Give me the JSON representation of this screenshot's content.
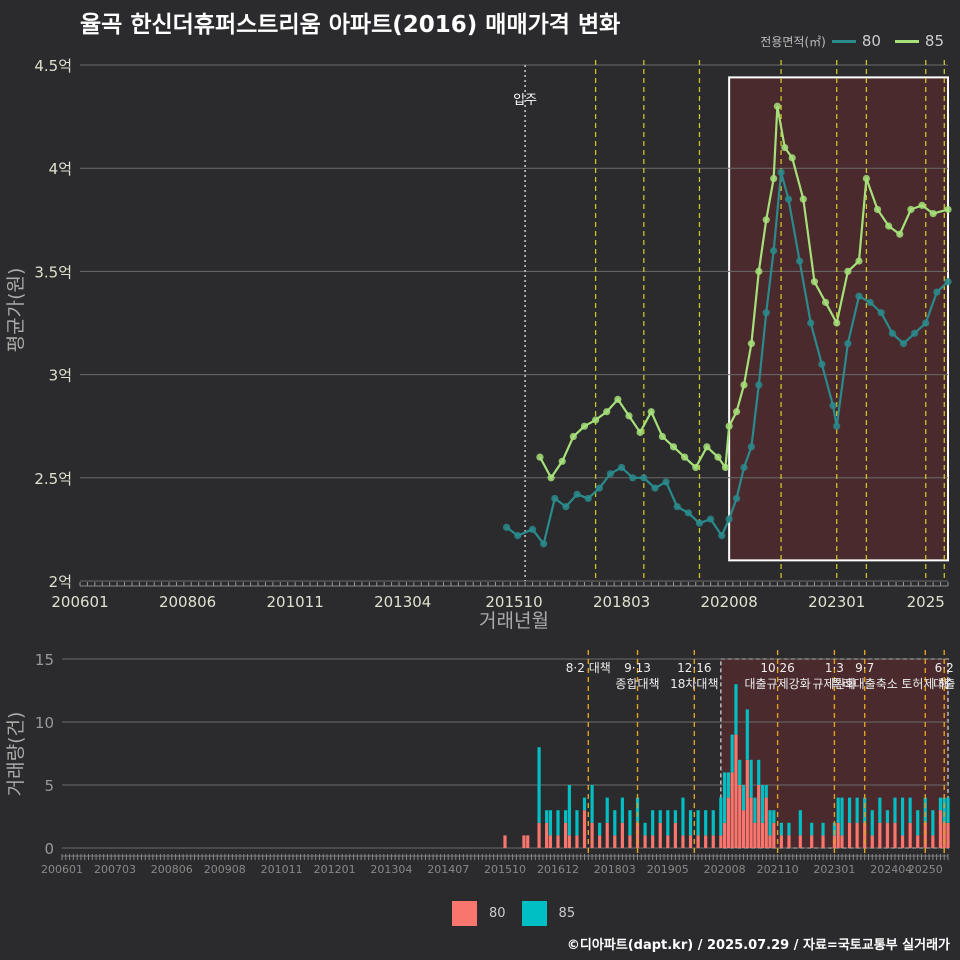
{
  "title": "율곡 한신더휴퍼스트리움 아파트(2016) 매매가격 변화",
  "legend": {
    "title": "전용면적(㎡)",
    "items": [
      {
        "name": "80",
        "color": "#2a8a8c"
      },
      {
        "name": "85",
        "color": "#a6e07a"
      }
    ]
  },
  "bottom_legend": [
    {
      "name": "80",
      "color": "#f8766d"
    },
    {
      "name": "85",
      "color": "#00bfc4"
    }
  ],
  "footer": "©디아파트(dapt.kr) / 2025.07.29 / 자료=국토교통부 실거래가",
  "chart_data": [
    {
      "type": "line",
      "xlabel": "거래년월",
      "ylabel": "평균가(원)",
      "xlim": [
        "2006-01",
        "2025-07"
      ],
      "ylim": [
        2.0,
        4.5
      ],
      "x_ticks": [
        "200601",
        "200806",
        "201011",
        "201304",
        "201510",
        "201803",
        "202008",
        "202301",
        "2025"
      ],
      "y_ticks": [
        "2억",
        "2.5억",
        "3억",
        "3.5억",
        "4억",
        "4.5억"
      ],
      "y_tick_values": [
        2.0,
        2.5,
        3.0,
        3.5,
        4.0,
        4.5
      ],
      "unit": "억",
      "move_in": {
        "label": "입주",
        "x": "2016-01"
      },
      "policy_lines": [
        "2017-08",
        "2018-09",
        "2019-12",
        "2021-10",
        "2023-01",
        "2023-09",
        "2025-01",
        "2025-06"
      ],
      "highlight": {
        "from": "2020-08",
        "to": "2025-07",
        "ymin": 2.1,
        "ymax": 4.44
      },
      "series": [
        {
          "name": "80",
          "x": [
            "2015-08",
            "2015-11",
            "2016-03",
            "2016-06",
            "2016-09",
            "2016-12",
            "2017-03",
            "2017-06",
            "2017-09",
            "2017-12",
            "2018-03",
            "2018-06",
            "2018-09",
            "2018-12",
            "2019-03",
            "2019-06",
            "2019-09",
            "2019-12",
            "2020-03",
            "2020-06",
            "2020-08",
            "2020-10",
            "2020-12",
            "2021-02",
            "2021-04",
            "2021-06",
            "2021-08",
            "2021-10",
            "2021-12",
            "2022-03",
            "2022-06",
            "2022-09",
            "2022-12",
            "2023-01",
            "2023-04",
            "2023-07",
            "2023-10",
            "2024-01",
            "2024-04",
            "2024-07",
            "2024-10",
            "2025-01",
            "2025-04",
            "2025-07"
          ],
          "y": [
            2.26,
            2.22,
            2.25,
            2.18,
            2.4,
            2.36,
            2.42,
            2.4,
            2.45,
            2.52,
            2.55,
            2.5,
            2.5,
            2.45,
            2.48,
            2.36,
            2.33,
            2.28,
            2.3,
            2.22,
            2.3,
            2.4,
            2.55,
            2.65,
            2.95,
            3.3,
            3.6,
            3.98,
            3.85,
            3.55,
            3.25,
            3.05,
            2.85,
            2.75,
            3.15,
            3.38,
            3.35,
            3.3,
            3.2,
            3.15,
            3.2,
            3.25,
            3.4,
            3.45
          ]
        },
        {
          "name": "85",
          "x": [
            "2016-05",
            "2016-08",
            "2016-11",
            "2017-02",
            "2017-05",
            "2017-08",
            "2017-11",
            "2018-02",
            "2018-05",
            "2018-08",
            "2018-11",
            "2019-02",
            "2019-05",
            "2019-08",
            "2019-11",
            "2020-02",
            "2020-05",
            "2020-07",
            "2020-08",
            "2020-10",
            "2020-12",
            "2021-02",
            "2021-04",
            "2021-06",
            "2021-08",
            "2021-09",
            "2021-11",
            "2022-01",
            "2022-04",
            "2022-07",
            "2022-10",
            "2023-01",
            "2023-04",
            "2023-07",
            "2023-09",
            "2023-12",
            "2024-03",
            "2024-06",
            "2024-09",
            "2024-12",
            "2025-03",
            "2025-07"
          ],
          "y": [
            2.6,
            2.5,
            2.58,
            2.7,
            2.75,
            2.78,
            2.82,
            2.88,
            2.8,
            2.72,
            2.82,
            2.7,
            2.65,
            2.6,
            2.55,
            2.65,
            2.6,
            2.55,
            2.75,
            2.82,
            2.95,
            3.15,
            3.5,
            3.75,
            3.95,
            4.3,
            4.1,
            4.05,
            3.85,
            3.45,
            3.35,
            3.25,
            3.5,
            3.55,
            3.95,
            3.8,
            3.72,
            3.68,
            3.8,
            3.82,
            3.78,
            3.8
          ]
        }
      ]
    },
    {
      "type": "bar",
      "xlabel": "",
      "ylabel": "거래량(건)",
      "ylim": [
        0,
        15
      ],
      "y_ticks": [
        "0",
        "5",
        "10",
        "15"
      ],
      "y_tick_values": [
        0,
        5,
        10,
        15
      ],
      "x_ticks": [
        "200601",
        "200703",
        "200806",
        "200908",
        "201011",
        "201201",
        "201304",
        "201407",
        "201510",
        "201612",
        "201803",
        "201905",
        "202008",
        "202110",
        "202301",
        "202404",
        "20250"
      ],
      "stacked": true,
      "series": [
        {
          "name": "80",
          "color": "#f8766d"
        },
        {
          "name": "85",
          "color": "#00bfc4"
        }
      ],
      "data": [
        {
          "x": "2015-10",
          "a": 1,
          "b": 0
        },
        {
          "x": "2016-03",
          "a": 1,
          "b": 0
        },
        {
          "x": "2016-04",
          "a": 1,
          "b": 0
        },
        {
          "x": "2016-07",
          "a": 2,
          "b": 6
        },
        {
          "x": "2016-09",
          "a": 2,
          "b": 1
        },
        {
          "x": "2016-10",
          "a": 1,
          "b": 2
        },
        {
          "x": "2016-12",
          "a": 1,
          "b": 2
        },
        {
          "x": "2017-02",
          "a": 2,
          "b": 1
        },
        {
          "x": "2017-03",
          "a": 1,
          "b": 4
        },
        {
          "x": "2017-05",
          "a": 1,
          "b": 2
        },
        {
          "x": "2017-07",
          "a": 3,
          "b": 1
        },
        {
          "x": "2017-09",
          "a": 2,
          "b": 3
        },
        {
          "x": "2017-11",
          "a": 1,
          "b": 1
        },
        {
          "x": "2018-01",
          "a": 2,
          "b": 2
        },
        {
          "x": "2018-03",
          "a": 1,
          "b": 2
        },
        {
          "x": "2018-05",
          "a": 2,
          "b": 2
        },
        {
          "x": "2018-07",
          "a": 1,
          "b": 2
        },
        {
          "x": "2018-09",
          "a": 2,
          "b": 2
        },
        {
          "x": "2018-11",
          "a": 1,
          "b": 1
        },
        {
          "x": "2019-01",
          "a": 1,
          "b": 2
        },
        {
          "x": "2019-03",
          "a": 2,
          "b": 1
        },
        {
          "x": "2019-05",
          "a": 1,
          "b": 2
        },
        {
          "x": "2019-07",
          "a": 2,
          "b": 1
        },
        {
          "x": "2019-09",
          "a": 1,
          "b": 3
        },
        {
          "x": "2019-11",
          "a": 1,
          "b": 2
        },
        {
          "x": "2020-01",
          "a": 1,
          "b": 2
        },
        {
          "x": "2020-03",
          "a": 1,
          "b": 2
        },
        {
          "x": "2020-05",
          "a": 1,
          "b": 2
        },
        {
          "x": "2020-07",
          "a": 1,
          "b": 3
        },
        {
          "x": "2020-08",
          "a": 2,
          "b": 4
        },
        {
          "x": "2020-09",
          "a": 4,
          "b": 2
        },
        {
          "x": "2020-10",
          "a": 6,
          "b": 3
        },
        {
          "x": "2020-11",
          "a": 9,
          "b": 4
        },
        {
          "x": "2020-12",
          "a": 5,
          "b": 2
        },
        {
          "x": "2021-01",
          "a": 3,
          "b": 2
        },
        {
          "x": "2021-02",
          "a": 7,
          "b": 4
        },
        {
          "x": "2021-03",
          "a": 4,
          "b": 3
        },
        {
          "x": "2021-04",
          "a": 2,
          "b": 2
        },
        {
          "x": "2021-05",
          "a": 5,
          "b": 2
        },
        {
          "x": "2021-06",
          "a": 2,
          "b": 3
        },
        {
          "x": "2021-07",
          "a": 4,
          "b": 1
        },
        {
          "x": "2021-08",
          "a": 1,
          "b": 2
        },
        {
          "x": "2021-09",
          "a": 2,
          "b": 1
        },
        {
          "x": "2021-11",
          "a": 1,
          "b": 1
        },
        {
          "x": "2022-01",
          "a": 1,
          "b": 1
        },
        {
          "x": "2022-04",
          "a": 1,
          "b": 2
        },
        {
          "x": "2022-07",
          "a": 1,
          "b": 1
        },
        {
          "x": "2022-10",
          "a": 1,
          "b": 1
        },
        {
          "x": "2023-01",
          "a": 1,
          "b": 1
        },
        {
          "x": "2023-02",
          "a": 2,
          "b": 2
        },
        {
          "x": "2023-03",
          "a": 1,
          "b": 3
        },
        {
          "x": "2023-05",
          "a": 2,
          "b": 2
        },
        {
          "x": "2023-07",
          "a": 2,
          "b": 2
        },
        {
          "x": "2023-09",
          "a": 2,
          "b": 2
        },
        {
          "x": "2023-11",
          "a": 1,
          "b": 2
        },
        {
          "x": "2024-01",
          "a": 2,
          "b": 2
        },
        {
          "x": "2024-03",
          "a": 2,
          "b": 1
        },
        {
          "x": "2024-05",
          "a": 2,
          "b": 2
        },
        {
          "x": "2024-07",
          "a": 1,
          "b": 3
        },
        {
          "x": "2024-09",
          "a": 2,
          "b": 2
        },
        {
          "x": "2024-11",
          "a": 1,
          "b": 2
        },
        {
          "x": "2025-01",
          "a": 2,
          "b": 2
        },
        {
          "x": "2025-03",
          "a": 1,
          "b": 2
        },
        {
          "x": "2025-05",
          "a": 3,
          "b": 1
        },
        {
          "x": "2025-06",
          "a": 2,
          "b": 2
        },
        {
          "x": "2025-07",
          "a": 2,
          "b": 2
        }
      ],
      "annotations": [
        {
          "x": "2017-08",
          "lines": [
            "8·2 대책"
          ]
        },
        {
          "x": "2018-09",
          "lines": [
            "9·13",
            "종합대책"
          ]
        },
        {
          "x": "2019-12",
          "lines": [
            "12·16",
            "18차대책"
          ]
        },
        {
          "x": "2021-10",
          "lines": [
            "10·26",
            "대출규제강화"
          ]
        },
        {
          "x": "2023-01",
          "lines": [
            "1·3",
            "규제완화"
          ]
        },
        {
          "x": "2023-09",
          "lines": [
            "9·7",
            "특례대출축소"
          ]
        },
        {
          "x": "2025-01",
          "lines": [
            "",
            "토허제 해"
          ]
        },
        {
          "x": "2025-06",
          "lines": [
            "6·2",
            "대출"
          ]
        }
      ]
    }
  ]
}
